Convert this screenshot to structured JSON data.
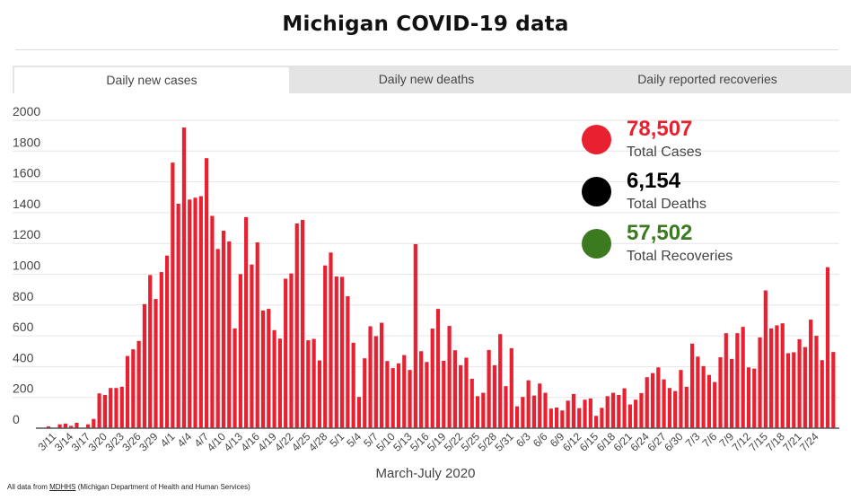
{
  "header": {
    "title": "Michigan COVID-19 data"
  },
  "tabs": [
    {
      "label": "Daily new cases",
      "active": true
    },
    {
      "label": "Daily new deaths",
      "active": false
    },
    {
      "label": "Daily reported recoveries",
      "active": false
    }
  ],
  "summary": [
    {
      "value": "78,507",
      "label": "Total Cases",
      "color": "#e8202f"
    },
    {
      "value": "6,154",
      "label": "Total Deaths",
      "color": "#000000"
    },
    {
      "value": "57,502",
      "label": "Total Recoveries",
      "color": "#3c7a1f"
    }
  ],
  "footer": {
    "prefix": "All data from ",
    "link": "MDHHS",
    "suffix": " (Michigan Department of Health and Human Services)"
  },
  "chart_data": {
    "type": "bar",
    "title": "Daily new cases",
    "xlabel": "March-July 2020",
    "ylabel": "",
    "ylim": [
      0,
      2000
    ],
    "yticks": [
      0,
      200,
      400,
      600,
      800,
      1000,
      1200,
      1400,
      1600,
      1800,
      2000
    ],
    "grid": true,
    "bar_color": "#e8202f",
    "x_tick_labels": [
      "3/11",
      "3/14",
      "3/17",
      "3/20",
      "3/23",
      "3/26",
      "3/29",
      "4/1",
      "4/4",
      "4/7",
      "4/10",
      "4/13",
      "4/16",
      "4/19",
      "4/22",
      "4/25",
      "4/28",
      "5/1",
      "5/4",
      "5/7",
      "5/10",
      "5/13",
      "5/16",
      "5/19",
      "5/22",
      "5/25",
      "5/28",
      "5/31",
      "6/3",
      "6/6",
      "6/9",
      "6/12",
      "6/15",
      "6/18",
      "6/21",
      "6/24",
      "6/27",
      "6/30",
      "7/3",
      "7/6",
      "7/9",
      "7/12",
      "7/15",
      "7/18",
      "7/21",
      "7/24"
    ],
    "categories": [
      "3/10",
      "3/11",
      "3/12",
      "3/13",
      "3/14",
      "3/15",
      "3/16",
      "3/17",
      "3/18",
      "3/19",
      "3/20",
      "3/21",
      "3/22",
      "3/23",
      "3/24",
      "3/25",
      "3/26",
      "3/27",
      "3/28",
      "3/29",
      "3/30",
      "3/31",
      "4/1",
      "4/2",
      "4/3",
      "4/4",
      "4/5",
      "4/6",
      "4/7",
      "4/8",
      "4/9",
      "4/10",
      "4/11",
      "4/12",
      "4/13",
      "4/14",
      "4/15",
      "4/16",
      "4/17",
      "4/18",
      "4/19",
      "4/20",
      "4/21",
      "4/22",
      "4/23",
      "4/24",
      "4/25",
      "4/26",
      "4/27",
      "4/28",
      "4/29",
      "4/30",
      "5/1",
      "5/2",
      "5/3",
      "5/4",
      "5/5",
      "5/6",
      "5/7",
      "5/8",
      "5/9",
      "5/10",
      "5/11",
      "5/12",
      "5/13",
      "5/14",
      "5/15",
      "5/16",
      "5/17",
      "5/18",
      "5/19",
      "5/20",
      "5/21",
      "5/22",
      "5/23",
      "5/24",
      "5/25",
      "5/26",
      "5/27",
      "5/28",
      "5/29",
      "5/30",
      "5/31",
      "6/1",
      "6/2",
      "6/3",
      "6/4",
      "6/5",
      "6/6",
      "6/7",
      "6/8",
      "6/9",
      "6/10",
      "6/11",
      "6/12",
      "6/13",
      "6/14",
      "6/15",
      "6/16",
      "6/17",
      "6/18",
      "6/19",
      "6/20",
      "6/21",
      "6/22",
      "6/23",
      "6/24",
      "6/25",
      "6/26",
      "6/27",
      "6/28",
      "6/29",
      "6/30",
      "7/1",
      "7/2",
      "7/3",
      "7/4",
      "7/5",
      "7/6",
      "7/7",
      "7/8",
      "7/9",
      "7/10",
      "7/11",
      "7/12",
      "7/13",
      "7/14",
      "7/15",
      "7/16",
      "7/17",
      "7/18",
      "7/19",
      "7/20",
      "7/21",
      "7/22",
      "7/23",
      "7/24",
      "7/25",
      "7/26",
      "7/27"
    ],
    "values": [
      12,
      0,
      25,
      30,
      15,
      35,
      0,
      25,
      60,
      226,
      216,
      261,
      261,
      269,
      469,
      512,
      567,
      806,
      995,
      839,
      1014,
      1121,
      1725,
      1458,
      1953,
      1485,
      1497,
      1507,
      1754,
      1379,
      1164,
      1283,
      1213,
      648,
      1001,
      1371,
      1063,
      1207,
      765,
      775,
      637,
      582,
      971,
      1005,
      1330,
      1353,
      571,
      580,
      440,
      1057,
      1141,
      985,
      983,
      857,
      555,
      203,
      454,
      662,
      598,
      685,
      436,
      390,
      421,
      475,
      378,
      1196,
      500,
      430,
      647,
      775,
      438,
      664,
      506,
      409,
      458,
      321,
      208,
      230,
      508,
      409,
      611,
      273,
      520,
      142,
      203,
      311,
      212,
      290,
      230,
      127,
      134,
      115,
      179,
      222,
      130,
      185,
      193,
      80,
      132,
      208,
      230,
      216,
      259,
      154,
      185,
      228,
      331,
      358,
      395,
      317,
      261,
      241,
      378,
      269,
      549,
      465,
      403,
      346,
      300,
      461,
      617,
      450,
      617,
      658,
      395,
      387,
      590,
      895,
      648,
      668,
      681,
      487,
      493,
      578,
      527,
      705,
      600,
      442,
      1046,
      495
    ]
  }
}
